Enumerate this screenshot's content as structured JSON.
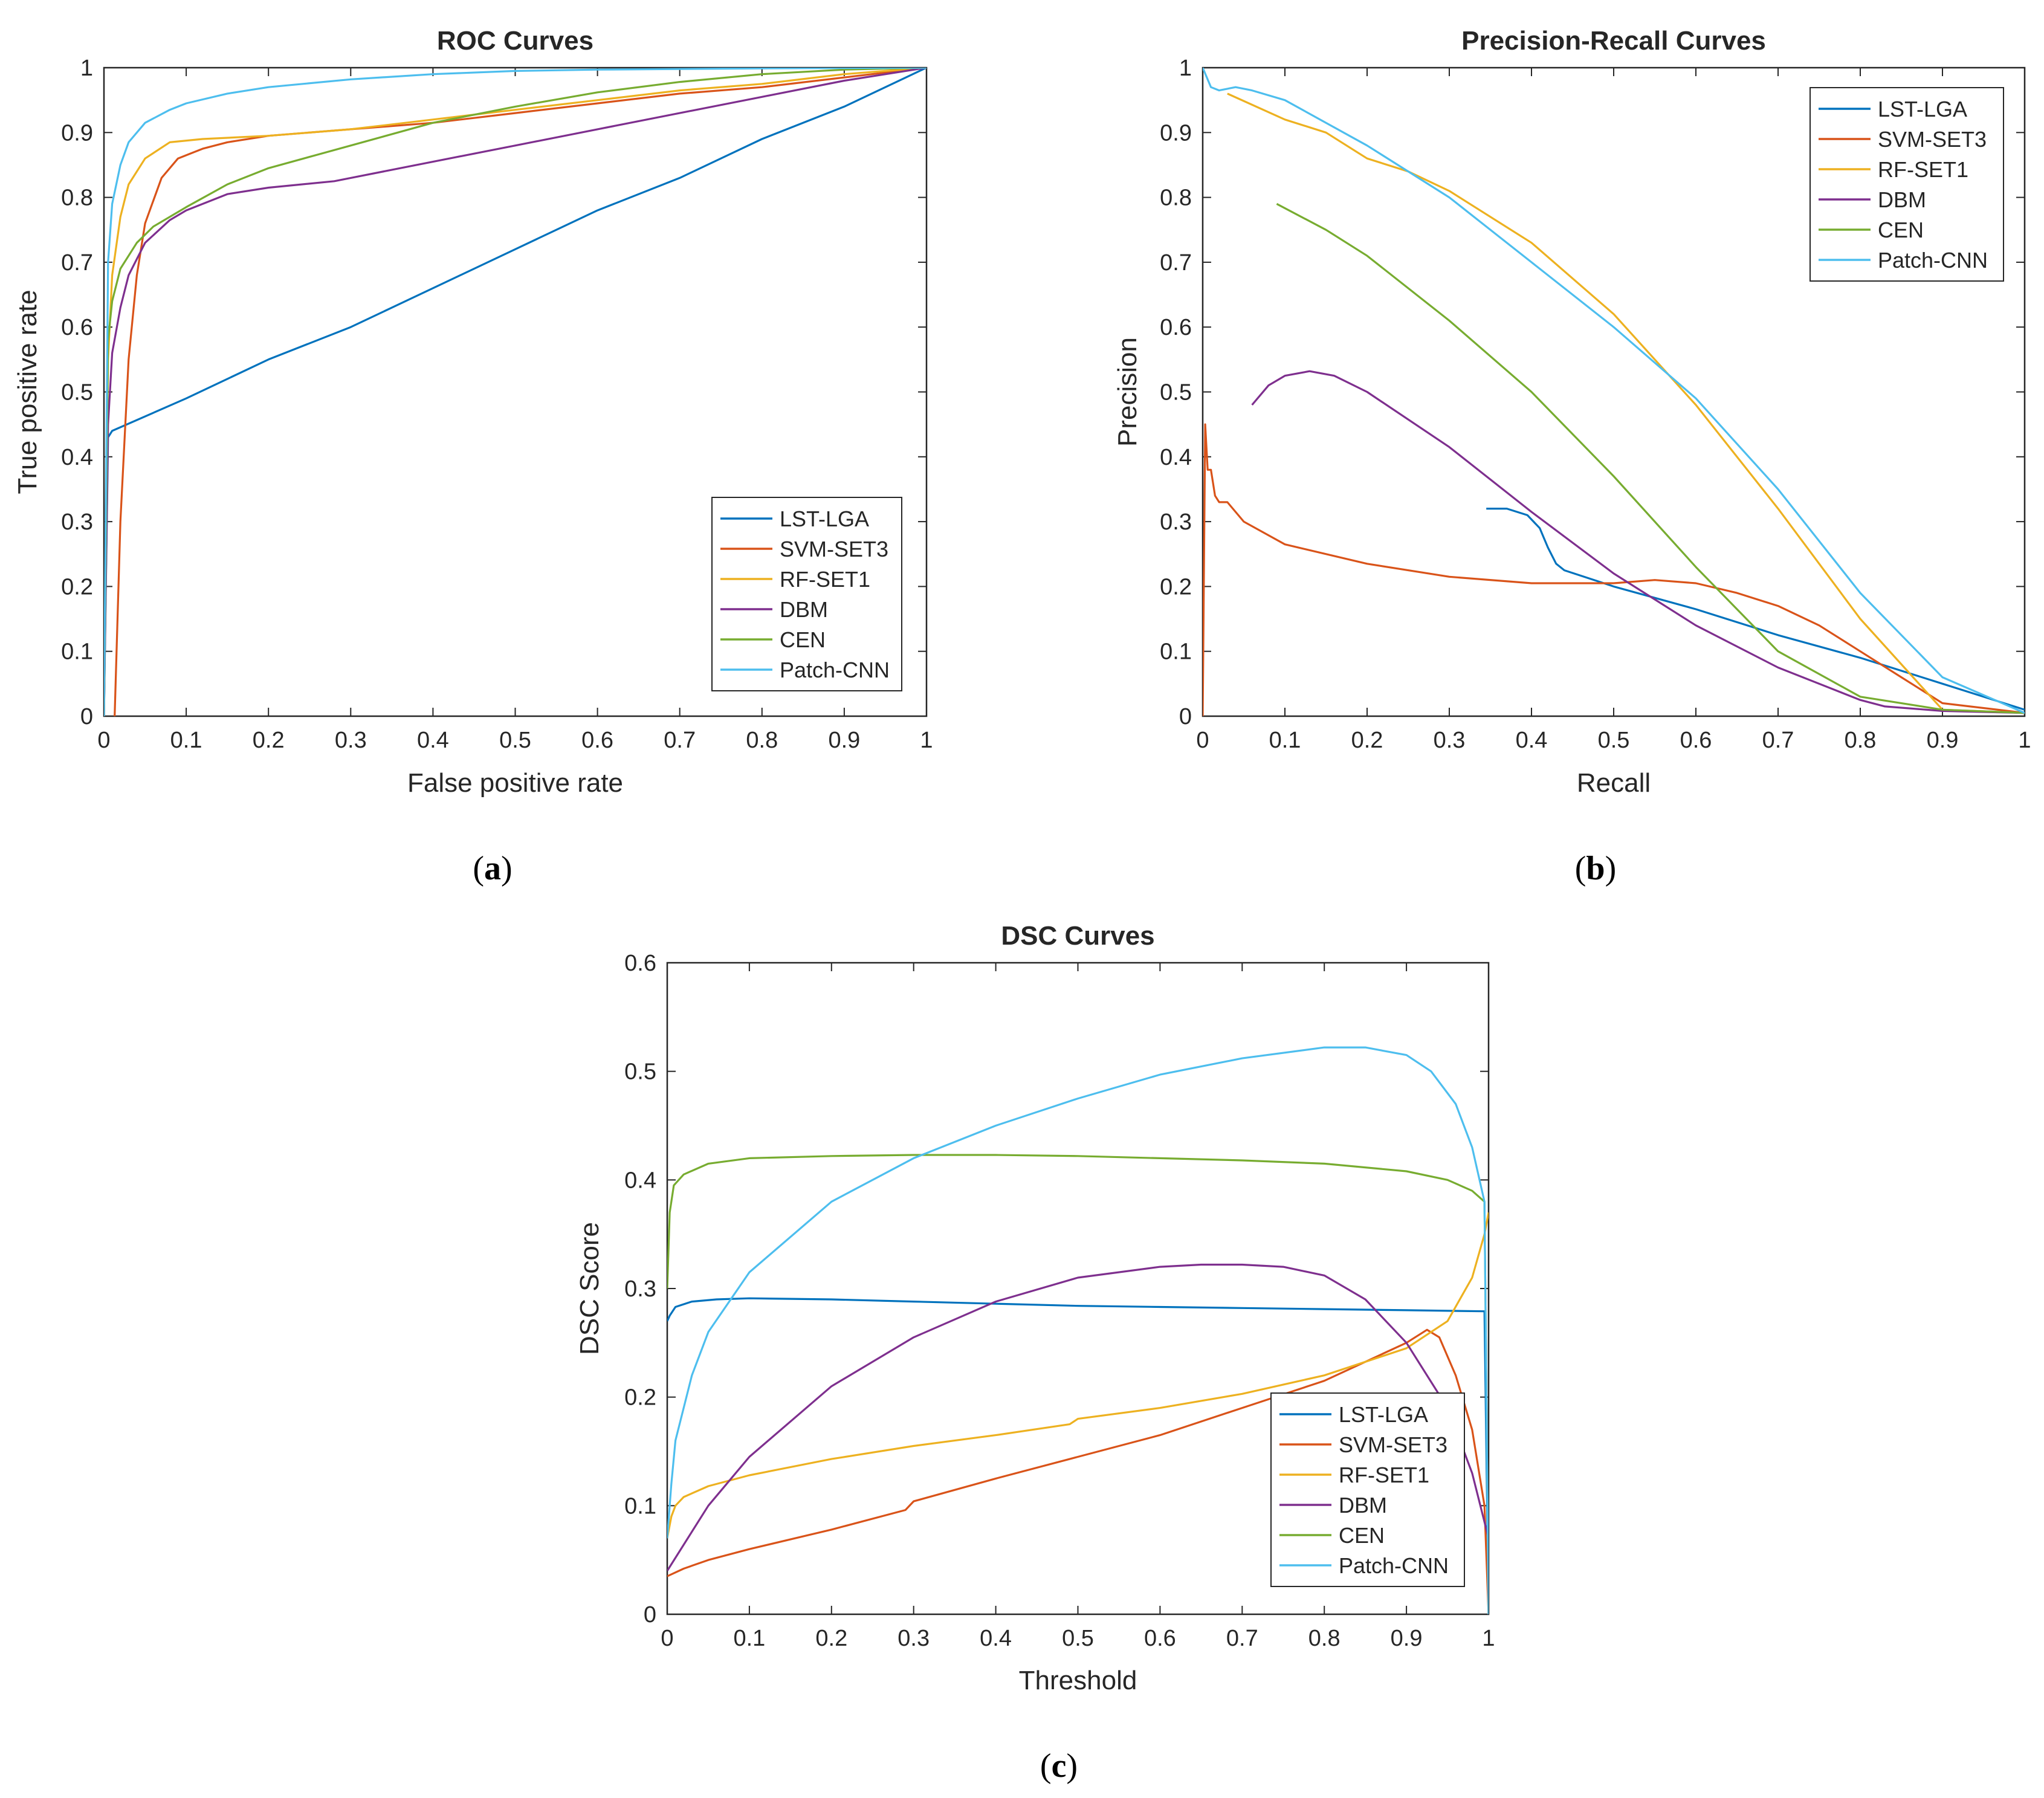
{
  "colors": {
    "LST-LGA": "#0072BD",
    "SVM-SET3": "#D95319",
    "RF-SET1": "#EDB120",
    "DBM": "#7E2F8E",
    "CEN": "#77AC30",
    "Patch-CNN": "#4DBEEE",
    "axis": "#262626"
  },
  "chart_data": [
    {
      "id": "a",
      "caption": "a",
      "type": "line",
      "title": "ROC Curves",
      "xlabel": "False positive rate",
      "ylabel": "True positive rate",
      "xlim": [
        0,
        1
      ],
      "ylim": [
        0,
        1
      ],
      "xticks": [
        0,
        0.1,
        0.2,
        0.3,
        0.4,
        0.5,
        0.6,
        0.7,
        0.8,
        0.9,
        1
      ],
      "yticks": [
        0,
        0.1,
        0.2,
        0.3,
        0.4,
        0.5,
        0.6,
        0.7,
        0.8,
        0.9,
        1
      ],
      "xtick_labels": [
        "0",
        "0.1",
        "0.2",
        "0.3",
        "0.4",
        "0.5",
        "0.6",
        "0.7",
        "0.8",
        "0.9",
        "1"
      ],
      "ytick_labels": [
        "0",
        "0.1",
        "0.2",
        "0.3",
        "0.4",
        "0.5",
        "0.6",
        "0.7",
        "0.8",
        "0.9",
        "1"
      ],
      "grid": false,
      "legend_position": "bottom-right",
      "series": [
        {
          "name": "LST-LGA",
          "x": [
            0,
            0.005,
            0.01,
            0.1,
            0.2,
            0.3,
            0.4,
            0.5,
            0.6,
            0.7,
            0.8,
            0.9,
            1.0
          ],
          "y": [
            0,
            0.43,
            0.44,
            0.49,
            0.55,
            0.6,
            0.66,
            0.72,
            0.78,
            0.83,
            0.89,
            0.94,
            1.0
          ]
        },
        {
          "name": "SVM-SET3",
          "x": [
            0.013,
            0.02,
            0.03,
            0.04,
            0.05,
            0.07,
            0.09,
            0.12,
            0.15,
            0.2,
            0.3,
            0.4,
            0.5,
            0.6,
            0.7,
            0.8,
            0.9,
            1.0
          ],
          "y": [
            0,
            0.3,
            0.55,
            0.68,
            0.76,
            0.83,
            0.86,
            0.875,
            0.885,
            0.895,
            0.905,
            0.915,
            0.93,
            0.945,
            0.96,
            0.97,
            0.985,
            1.0
          ]
        },
        {
          "name": "RF-SET1",
          "x": [
            0,
            0.005,
            0.01,
            0.02,
            0.03,
            0.05,
            0.08,
            0.12,
            0.2,
            0.3,
            0.4,
            0.5,
            0.6,
            0.7,
            0.8,
            0.9,
            1.0
          ],
          "y": [
            0,
            0.55,
            0.68,
            0.77,
            0.82,
            0.86,
            0.885,
            0.89,
            0.895,
            0.905,
            0.92,
            0.935,
            0.95,
            0.965,
            0.975,
            0.99,
            1.0
          ]
        },
        {
          "name": "DBM",
          "x": [
            0,
            0.005,
            0.01,
            0.02,
            0.03,
            0.05,
            0.08,
            0.1,
            0.15,
            0.2,
            0.28,
            0.3,
            0.4,
            0.5,
            0.6,
            0.7,
            0.8,
            0.9,
            1.0
          ],
          "y": [
            0,
            0.45,
            0.56,
            0.63,
            0.68,
            0.73,
            0.765,
            0.78,
            0.805,
            0.815,
            0.825,
            0.83,
            0.855,
            0.88,
            0.905,
            0.93,
            0.955,
            0.98,
            1.0
          ]
        },
        {
          "name": "CEN",
          "x": [
            0,
            0.005,
            0.01,
            0.02,
            0.04,
            0.06,
            0.1,
            0.15,
            0.2,
            0.3,
            0.4,
            0.5,
            0.6,
            0.7,
            0.8,
            0.9,
            1.0
          ],
          "y": [
            0,
            0.58,
            0.64,
            0.69,
            0.73,
            0.755,
            0.785,
            0.82,
            0.845,
            0.88,
            0.915,
            0.94,
            0.962,
            0.978,
            0.99,
            0.997,
            1.0
          ]
        },
        {
          "name": "Patch-CNN",
          "x": [
            0,
            0.005,
            0.01,
            0.02,
            0.03,
            0.05,
            0.08,
            0.1,
            0.15,
            0.2,
            0.3,
            0.4,
            0.5,
            0.6,
            0.8,
            1.0
          ],
          "y": [
            0,
            0.7,
            0.79,
            0.85,
            0.885,
            0.915,
            0.935,
            0.945,
            0.96,
            0.97,
            0.982,
            0.99,
            0.995,
            0.997,
            0.999,
            1.0
          ]
        }
      ]
    },
    {
      "id": "b",
      "caption": "b",
      "type": "line",
      "title": "Precision-Recall Curves",
      "xlabel": "Recall",
      "ylabel": "Precision",
      "xlim": [
        0,
        1
      ],
      "ylim": [
        0,
        1
      ],
      "xticks": [
        0,
        0.1,
        0.2,
        0.3,
        0.4,
        0.5,
        0.6,
        0.7,
        0.8,
        0.9,
        1
      ],
      "yticks": [
        0,
        0.1,
        0.2,
        0.3,
        0.4,
        0.5,
        0.6,
        0.7,
        0.8,
        0.9,
        1
      ],
      "xtick_labels": [
        "0",
        "0.1",
        "0.2",
        "0.3",
        "0.4",
        "0.5",
        "0.6",
        "0.7",
        "0.8",
        "0.9",
        "1"
      ],
      "ytick_labels": [
        "0",
        "0.1",
        "0.2",
        "0.3",
        "0.4",
        "0.5",
        "0.6",
        "0.7",
        "0.8",
        "0.9",
        "1"
      ],
      "grid": false,
      "legend_position": "top-right",
      "series": [
        {
          "name": "LST-LGA",
          "x": [
            0.345,
            0.37,
            0.395,
            0.41,
            0.42,
            0.43,
            0.44,
            0.5,
            0.6,
            0.7,
            0.8,
            0.9,
            1.0
          ],
          "y": [
            0.32,
            0.32,
            0.31,
            0.29,
            0.26,
            0.235,
            0.225,
            0.2,
            0.165,
            0.125,
            0.09,
            0.05,
            0.01
          ]
        },
        {
          "name": "SVM-SET3",
          "x": [
            0.0,
            0.003,
            0.006,
            0.01,
            0.015,
            0.02,
            0.03,
            0.05,
            0.1,
            0.2,
            0.3,
            0.4,
            0.5,
            0.55,
            0.6,
            0.65,
            0.7,
            0.75,
            0.8,
            0.85,
            0.9,
            1.0
          ],
          "y": [
            0.0,
            0.45,
            0.38,
            0.38,
            0.34,
            0.33,
            0.33,
            0.3,
            0.265,
            0.235,
            0.215,
            0.205,
            0.205,
            0.21,
            0.205,
            0.19,
            0.17,
            0.14,
            0.1,
            0.06,
            0.02,
            0.005
          ]
        },
        {
          "name": "RF-SET1",
          "x": [
            0.03,
            0.1,
            0.15,
            0.2,
            0.25,
            0.3,
            0.4,
            0.5,
            0.6,
            0.7,
            0.8,
            0.9,
            1.0
          ],
          "y": [
            0.96,
            0.92,
            0.9,
            0.86,
            0.84,
            0.81,
            0.73,
            0.62,
            0.48,
            0.32,
            0.15,
            0.01,
            0.005
          ]
        },
        {
          "name": "DBM",
          "x": [
            0.06,
            0.08,
            0.1,
            0.13,
            0.16,
            0.2,
            0.3,
            0.4,
            0.5,
            0.6,
            0.7,
            0.8,
            0.83,
            0.9,
            1.0
          ],
          "y": [
            0.48,
            0.51,
            0.525,
            0.532,
            0.525,
            0.5,
            0.415,
            0.315,
            0.22,
            0.14,
            0.075,
            0.025,
            0.015,
            0.008,
            0.005
          ]
        },
        {
          "name": "CEN",
          "x": [
            0.09,
            0.15,
            0.2,
            0.3,
            0.4,
            0.5,
            0.6,
            0.7,
            0.8,
            0.9,
            1.0
          ],
          "y": [
            0.79,
            0.75,
            0.71,
            0.61,
            0.5,
            0.37,
            0.23,
            0.1,
            0.03,
            0.01,
            0.005
          ]
        },
        {
          "name": "Patch-CNN",
          "x": [
            0.0,
            0.01,
            0.02,
            0.04,
            0.06,
            0.1,
            0.2,
            0.3,
            0.4,
            0.5,
            0.6,
            0.7,
            0.8,
            0.9,
            1.0
          ],
          "y": [
            1.0,
            0.97,
            0.965,
            0.97,
            0.965,
            0.95,
            0.88,
            0.8,
            0.7,
            0.6,
            0.49,
            0.35,
            0.19,
            0.06,
            0.005
          ]
        }
      ]
    },
    {
      "id": "c",
      "caption": "c",
      "type": "line",
      "title": "DSC Curves",
      "xlabel": "Threshold",
      "ylabel": "DSC Score",
      "xlim": [
        0,
        1
      ],
      "ylim": [
        0,
        0.6
      ],
      "xticks": [
        0,
        0.1,
        0.2,
        0.3,
        0.4,
        0.5,
        0.6,
        0.7,
        0.8,
        0.9,
        1
      ],
      "yticks": [
        0,
        0.1,
        0.2,
        0.3,
        0.4,
        0.5,
        0.6
      ],
      "xtick_labels": [
        "0",
        "0.1",
        "0.2",
        "0.3",
        "0.4",
        "0.5",
        "0.6",
        "0.7",
        "0.8",
        "0.9",
        "1"
      ],
      "ytick_labels": [
        "0",
        "0.1",
        "0.2",
        "0.3",
        "0.4",
        "0.5",
        "0.6"
      ],
      "grid": false,
      "legend_position": "bottom-right",
      "series": [
        {
          "name": "LST-LGA",
          "x": [
            0.0,
            0.003,
            0.01,
            0.03,
            0.06,
            0.1,
            0.2,
            0.3,
            0.4,
            0.5,
            0.6,
            0.7,
            0.8,
            0.9,
            0.995,
            1.0
          ],
          "y": [
            0.27,
            0.275,
            0.283,
            0.288,
            0.29,
            0.291,
            0.29,
            0.288,
            0.286,
            0.284,
            0.283,
            0.282,
            0.281,
            0.28,
            0.279,
            0.0
          ]
        },
        {
          "name": "SVM-SET3",
          "x": [
            0.0,
            0.02,
            0.05,
            0.1,
            0.2,
            0.29,
            0.3,
            0.4,
            0.5,
            0.6,
            0.7,
            0.8,
            0.9,
            0.925,
            0.94,
            0.96,
            0.98,
            0.995,
            1.0
          ],
          "y": [
            0.035,
            0.042,
            0.05,
            0.06,
            0.078,
            0.096,
            0.104,
            0.125,
            0.145,
            0.165,
            0.19,
            0.215,
            0.25,
            0.262,
            0.255,
            0.22,
            0.17,
            0.1,
            0.0
          ]
        },
        {
          "name": "RF-SET1",
          "x": [
            0.0,
            0.005,
            0.01,
            0.02,
            0.05,
            0.1,
            0.2,
            0.3,
            0.4,
            0.49,
            0.5,
            0.6,
            0.7,
            0.8,
            0.9,
            0.95,
            0.98,
            0.995,
            1.0
          ],
          "y": [
            0.07,
            0.09,
            0.1,
            0.108,
            0.118,
            0.128,
            0.143,
            0.155,
            0.165,
            0.175,
            0.18,
            0.19,
            0.203,
            0.22,
            0.245,
            0.27,
            0.31,
            0.35,
            0.37
          ]
        },
        {
          "name": "DBM",
          "x": [
            0.0,
            0.05,
            0.1,
            0.2,
            0.3,
            0.4,
            0.5,
            0.6,
            0.65,
            0.7,
            0.75,
            0.8,
            0.85,
            0.9,
            0.95,
            0.98,
            1.0
          ],
          "y": [
            0.04,
            0.1,
            0.145,
            0.21,
            0.255,
            0.288,
            0.31,
            0.32,
            0.322,
            0.322,
            0.32,
            0.312,
            0.29,
            0.25,
            0.19,
            0.13,
            0.07
          ]
        },
        {
          "name": "CEN",
          "x": [
            0.0,
            0.003,
            0.008,
            0.02,
            0.05,
            0.1,
            0.2,
            0.3,
            0.4,
            0.5,
            0.6,
            0.7,
            0.8,
            0.9,
            0.95,
            0.98,
            0.995,
            1.0
          ],
          "y": [
            0.3,
            0.37,
            0.395,
            0.405,
            0.415,
            0.42,
            0.422,
            0.423,
            0.423,
            0.422,
            0.42,
            0.418,
            0.415,
            0.408,
            0.4,
            0.39,
            0.38,
            0.0
          ]
        },
        {
          "name": "Patch-CNN",
          "x": [
            0.0,
            0.005,
            0.01,
            0.03,
            0.05,
            0.1,
            0.2,
            0.3,
            0.4,
            0.5,
            0.6,
            0.7,
            0.8,
            0.85,
            0.9,
            0.93,
            0.96,
            0.98,
            0.995,
            1.0
          ],
          "y": [
            0.07,
            0.12,
            0.16,
            0.22,
            0.26,
            0.315,
            0.38,
            0.42,
            0.45,
            0.475,
            0.497,
            0.512,
            0.522,
            0.522,
            0.515,
            0.5,
            0.47,
            0.43,
            0.38,
            0.0
          ]
        }
      ]
    }
  ]
}
